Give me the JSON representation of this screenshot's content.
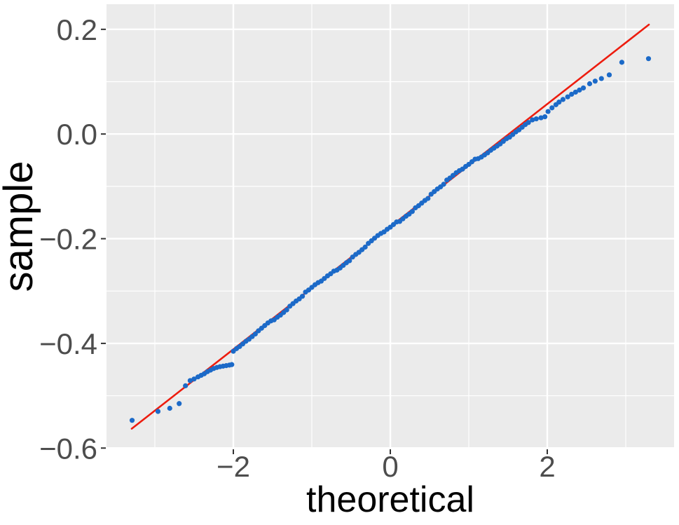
{
  "chart_data": {
    "type": "scatter",
    "subtype": "qq-plot",
    "title": "",
    "xlabel": "theoretical",
    "ylabel": "sample",
    "xlim": [
      -3.616,
      3.616
    ],
    "ylim": [
      -0.601,
      0.248
    ],
    "grid": "on",
    "legend": "none",
    "x_ticks": [
      -2,
      0,
      2
    ],
    "x_tick_labels": [
      "−2",
      "0",
      "2"
    ],
    "y_ticks": [
      0.2,
      0.0,
      -0.2,
      -0.4,
      -0.6
    ],
    "y_tick_labels": [
      "0.2",
      "0.0",
      "−0.2",
      "−0.4",
      "−0.6"
    ],
    "x_minor_ticks": [
      -3,
      -1,
      1,
      3
    ],
    "y_minor_ticks": [
      0.1,
      -0.1,
      -0.3,
      -0.5
    ],
    "qq_line": {
      "x1": -3.295,
      "y1": -0.563,
      "x2": 3.295,
      "y2": 0.209,
      "slope": 0.117,
      "intercept": -0.177
    },
    "colors": {
      "point": "#1c6ac8",
      "line": "#ed1c0e",
      "panel_background": "#ebebeb",
      "gridline": "#ffffff",
      "tick_label": "#4d4d4d",
      "tick_mark": "#333333",
      "axis_title": "#000000"
    },
    "points": [
      [
        -3.29,
        -0.547
      ],
      [
        -2.96,
        -0.53
      ],
      [
        -2.81,
        -0.524
      ],
      [
        -2.69,
        -0.515
      ],
      [
        -2.61,
        -0.481
      ],
      [
        -2.55,
        -0.471
      ],
      [
        -2.5,
        -0.468
      ],
      [
        -2.45,
        -0.464
      ],
      [
        -2.41,
        -0.461
      ],
      [
        -2.37,
        -0.458
      ],
      [
        -2.33,
        -0.454
      ],
      [
        -2.29,
        -0.451
      ],
      [
        -2.25,
        -0.448
      ],
      [
        -2.21,
        -0.446
      ],
      [
        -2.17,
        -0.4445
      ],
      [
        -2.13,
        -0.4435
      ],
      [
        -2.09,
        -0.4425
      ],
      [
        -2.05,
        -0.4415
      ],
      [
        -2.02,
        -0.4405
      ],
      [
        -2.0,
        -0.415
      ],
      [
        -1.96,
        -0.41
      ],
      [
        -1.92,
        -0.406
      ],
      [
        -1.88,
        -0.401
      ],
      [
        -1.84,
        -0.396
      ],
      [
        -1.8,
        -0.392
      ],
      [
        -1.76,
        -0.387
      ],
      [
        -1.72,
        -0.382
      ],
      [
        -1.68,
        -0.376
      ],
      [
        -1.64,
        -0.371
      ],
      [
        -1.6,
        -0.366
      ],
      [
        -1.56,
        -0.361
      ],
      [
        -1.52,
        -0.357
      ],
      [
        -1.48,
        -0.355
      ],
      [
        -1.44,
        -0.35
      ],
      [
        -1.4,
        -0.346
      ],
      [
        -1.36,
        -0.341
      ],
      [
        -1.32,
        -0.336
      ],
      [
        -1.28,
        -0.329
      ],
      [
        -1.24,
        -0.324
      ],
      [
        -1.2,
        -0.319
      ],
      [
        -1.16,
        -0.315
      ],
      [
        -1.12,
        -0.31
      ],
      [
        -1.08,
        -0.302
      ],
      [
        -1.04,
        -0.298
      ],
      [
        -1.0,
        -0.293
      ],
      [
        -0.96,
        -0.288
      ],
      [
        -0.92,
        -0.284
      ],
      [
        -0.88,
        -0.281
      ],
      [
        -0.84,
        -0.276
      ],
      [
        -0.8,
        -0.271
      ],
      [
        -0.76,
        -0.267
      ],
      [
        -0.72,
        -0.262
      ],
      [
        -0.68,
        -0.26
      ],
      [
        -0.64,
        -0.256
      ],
      [
        -0.6,
        -0.251
      ],
      [
        -0.56,
        -0.246
      ],
      [
        -0.52,
        -0.242
      ],
      [
        -0.48,
        -0.235
      ],
      [
        -0.44,
        -0.23
      ],
      [
        -0.4,
        -0.226
      ],
      [
        -0.36,
        -0.221
      ],
      [
        -0.32,
        -0.216
      ],
      [
        -0.28,
        -0.209
      ],
      [
        -0.24,
        -0.204
      ],
      [
        -0.2,
        -0.199
      ],
      [
        -0.16,
        -0.194
      ],
      [
        -0.12,
        -0.19
      ],
      [
        -0.08,
        -0.187
      ],
      [
        -0.04,
        -0.182
      ],
      [
        0.0,
        -0.178
      ],
      [
        0.04,
        -0.173
      ],
      [
        0.08,
        -0.168
      ],
      [
        0.12,
        -0.167
      ],
      [
        0.16,
        -0.162
      ],
      [
        0.2,
        -0.157
      ],
      [
        0.24,
        -0.153
      ],
      [
        0.28,
        -0.148
      ],
      [
        0.32,
        -0.141
      ],
      [
        0.36,
        -0.137
      ],
      [
        0.4,
        -0.132
      ],
      [
        0.44,
        -0.127
      ],
      [
        0.48,
        -0.123
      ],
      [
        0.52,
        -0.115
      ],
      [
        0.56,
        -0.11
      ],
      [
        0.6,
        -0.105
      ],
      [
        0.64,
        -0.101
      ],
      [
        0.68,
        -0.096
      ],
      [
        0.72,
        -0.088
      ],
      [
        0.76,
        -0.084
      ],
      [
        0.8,
        -0.079
      ],
      [
        0.84,
        -0.074
      ],
      [
        0.88,
        -0.07
      ],
      [
        0.92,
        -0.067
      ],
      [
        0.96,
        -0.062
      ],
      [
        1.0,
        -0.058
      ],
      [
        1.04,
        -0.053
      ],
      [
        1.08,
        -0.048
      ],
      [
        1.12,
        -0.047
      ],
      [
        1.16,
        -0.044
      ],
      [
        1.2,
        -0.04
      ],
      [
        1.24,
        -0.036
      ],
      [
        1.28,
        -0.031
      ],
      [
        1.32,
        -0.027
      ],
      [
        1.36,
        -0.023
      ],
      [
        1.4,
        -0.019
      ],
      [
        1.44,
        -0.014
      ],
      [
        1.48,
        -0.009
      ],
      [
        1.52,
        -0.006
      ],
      [
        1.56,
        -0.001
      ],
      [
        1.6,
        0.004
      ],
      [
        1.64,
        0.008
      ],
      [
        1.68,
        0.013
      ],
      [
        1.72,
        0.018
      ],
      [
        1.76,
        0.022
      ],
      [
        1.81,
        0.027
      ],
      [
        1.86,
        0.029
      ],
      [
        1.92,
        0.031
      ],
      [
        1.97,
        0.033
      ],
      [
        2.01,
        0.043
      ],
      [
        2.06,
        0.05
      ],
      [
        2.11,
        0.056
      ],
      [
        2.15,
        0.061
      ],
      [
        2.2,
        0.066
      ],
      [
        2.26,
        0.071
      ],
      [
        2.31,
        0.076
      ],
      [
        2.36,
        0.08
      ],
      [
        2.41,
        0.084
      ],
      [
        2.46,
        0.088
      ],
      [
        2.54,
        0.096
      ],
      [
        2.61,
        0.101
      ],
      [
        2.69,
        0.106
      ],
      [
        2.79,
        0.113
      ],
      [
        2.95,
        0.137
      ],
      [
        3.29,
        0.144
      ]
    ]
  }
}
